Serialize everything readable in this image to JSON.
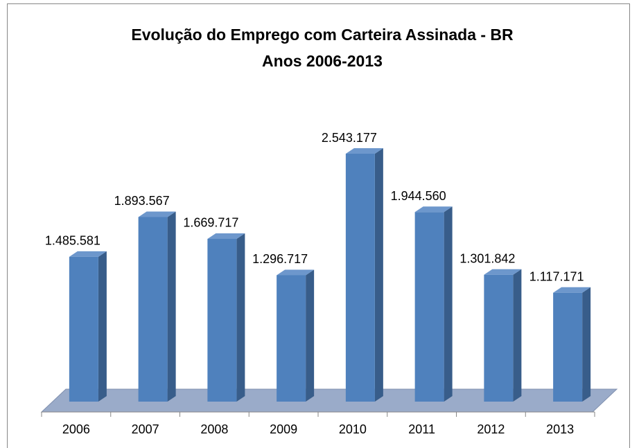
{
  "chart_data": {
    "type": "bar3d",
    "title": "Evolução do Emprego com Carteira Assinada - BR",
    "subtitle": "Anos 2006-2013",
    "categories": [
      "2006",
      "2007",
      "2008",
      "2009",
      "2010",
      "2011",
      "2012",
      "2013"
    ],
    "values": [
      1485581,
      1893567,
      1669717,
      1296717,
      2543177,
      1944560,
      1301842,
      1117171
    ],
    "value_labels": [
      "1.485.581",
      "1.893.567",
      "1.669.717",
      "1.296.717",
      "2.543.177",
      "1.944.560",
      "1.301.842",
      "1.117.171"
    ],
    "color": "#4f81bd"
  }
}
